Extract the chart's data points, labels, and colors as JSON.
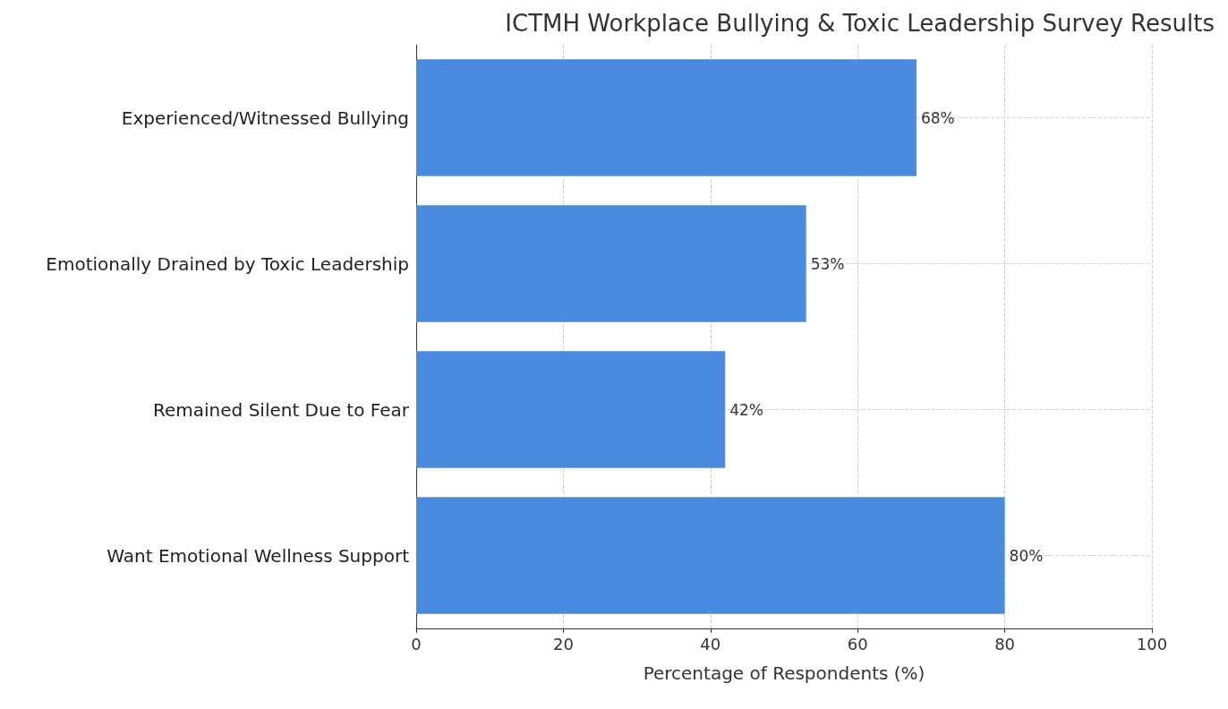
{
  "chart_data": {
    "type": "bar",
    "orientation": "horizontal",
    "title": "ICTMH Workplace Bullying & Toxic Leadership Survey Results",
    "xlabel": "Percentage of Respondents (%)",
    "categories": [
      "Experienced/Witnessed Bullying",
      "Emotionally Drained by Toxic Leadership",
      "Remained Silent Due to Fear",
      "Want Emotional Wellness Support"
    ],
    "values": [
      68,
      53,
      42,
      80
    ],
    "color": "#4a8be0",
    "value_labels": [
      "68%",
      "53%",
      "42%",
      "80%"
    ],
    "xlim": [
      0,
      100
    ],
    "xticks": [
      0,
      20,
      40,
      60,
      80,
      100
    ],
    "grid": true
  }
}
